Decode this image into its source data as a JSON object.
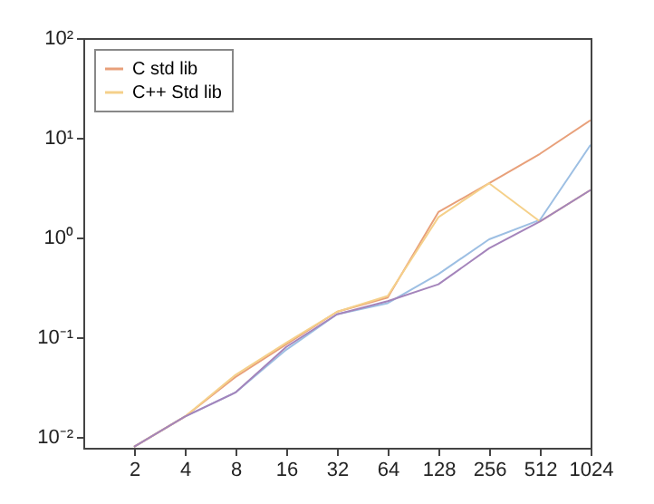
{
  "chart_data": {
    "type": "line",
    "x": [
      2,
      4,
      8,
      16,
      32,
      64,
      128,
      256,
      512,
      1024
    ],
    "series": [
      {
        "color": "#9dbfe3",
        "values": [
          0.008,
          0.016,
          0.028,
          0.075,
          0.17,
          0.22,
          0.43,
          0.96,
          1.5,
          8.5
        ]
      },
      {
        "name": "C std lib",
        "color": "#e8a07a",
        "values": [
          0.008,
          0.016,
          0.04,
          0.085,
          0.18,
          0.25,
          1.8,
          3.5,
          6.9,
          15
        ]
      },
      {
        "name": "C++ Std lib",
        "color": "#f5d08a",
        "values": [
          0.008,
          0.016,
          0.042,
          0.088,
          0.18,
          0.26,
          1.6,
          3.5,
          1.45,
          3.0
        ]
      },
      {
        "color": "#a484bb",
        "values": [
          0.008,
          0.016,
          0.028,
          0.08,
          0.17,
          0.23,
          0.34,
          0.78,
          1.45,
          3.0
        ]
      }
    ],
    "log": "xy",
    "xlim": [
      1,
      1024
    ],
    "ylim": [
      0.0078,
      100
    ],
    "xticks": [
      2,
      4,
      8,
      16,
      32,
      64,
      128,
      256,
      512,
      1024
    ],
    "yticks": [
      {
        "value": 0.01,
        "label": "10⁻²"
      },
      {
        "value": 0.1,
        "label": "10⁻¹"
      },
      {
        "value": 1,
        "label": "10⁰"
      },
      {
        "value": 10,
        "label": "10¹"
      },
      {
        "value": 100,
        "label": "10²"
      }
    ],
    "legend": "top left",
    "grid": false,
    "marker": "none",
    "line_style": "solid"
  }
}
